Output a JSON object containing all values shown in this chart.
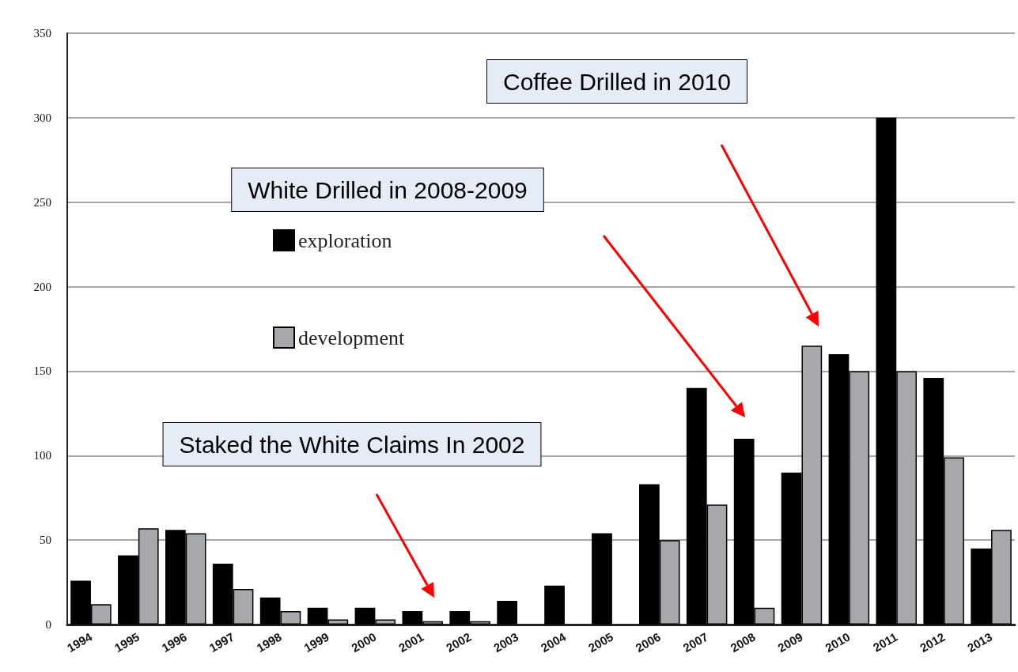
{
  "chart_data": {
    "type": "bar",
    "categories": [
      "1994",
      "1995",
      "1996",
      "1997",
      "1998",
      "1999",
      "2000",
      "2001",
      "2002",
      "2003",
      "2004",
      "2005",
      "2006",
      "2007",
      "2008",
      "2009",
      "2010",
      "2011",
      "2012",
      "2013"
    ],
    "series": [
      {
        "name": "exploration",
        "color": "#000000",
        "values": [
          26,
          41,
          56,
          36,
          16,
          10,
          10,
          8,
          8,
          14,
          23,
          54,
          83,
          140,
          110,
          90,
          160,
          300,
          146,
          45
        ]
      },
      {
        "name": "development",
        "color": "#a6a8ab",
        "values": [
          12,
          57,
          54,
          21,
          8,
          3,
          3,
          2,
          2,
          null,
          null,
          null,
          50,
          71,
          10,
          165,
          150,
          150,
          99,
          56
        ]
      }
    ],
    "ylim": [
      0,
      350
    ],
    "yticks": [
      0,
      50,
      100,
      150,
      200,
      250,
      300,
      350
    ],
    "grid": "y",
    "legend": "top left",
    "annotations": [
      "Coffee Drilled in 2010",
      "White Drilled in 2008-2009",
      "Staked the White Claims In 2002"
    ]
  }
}
